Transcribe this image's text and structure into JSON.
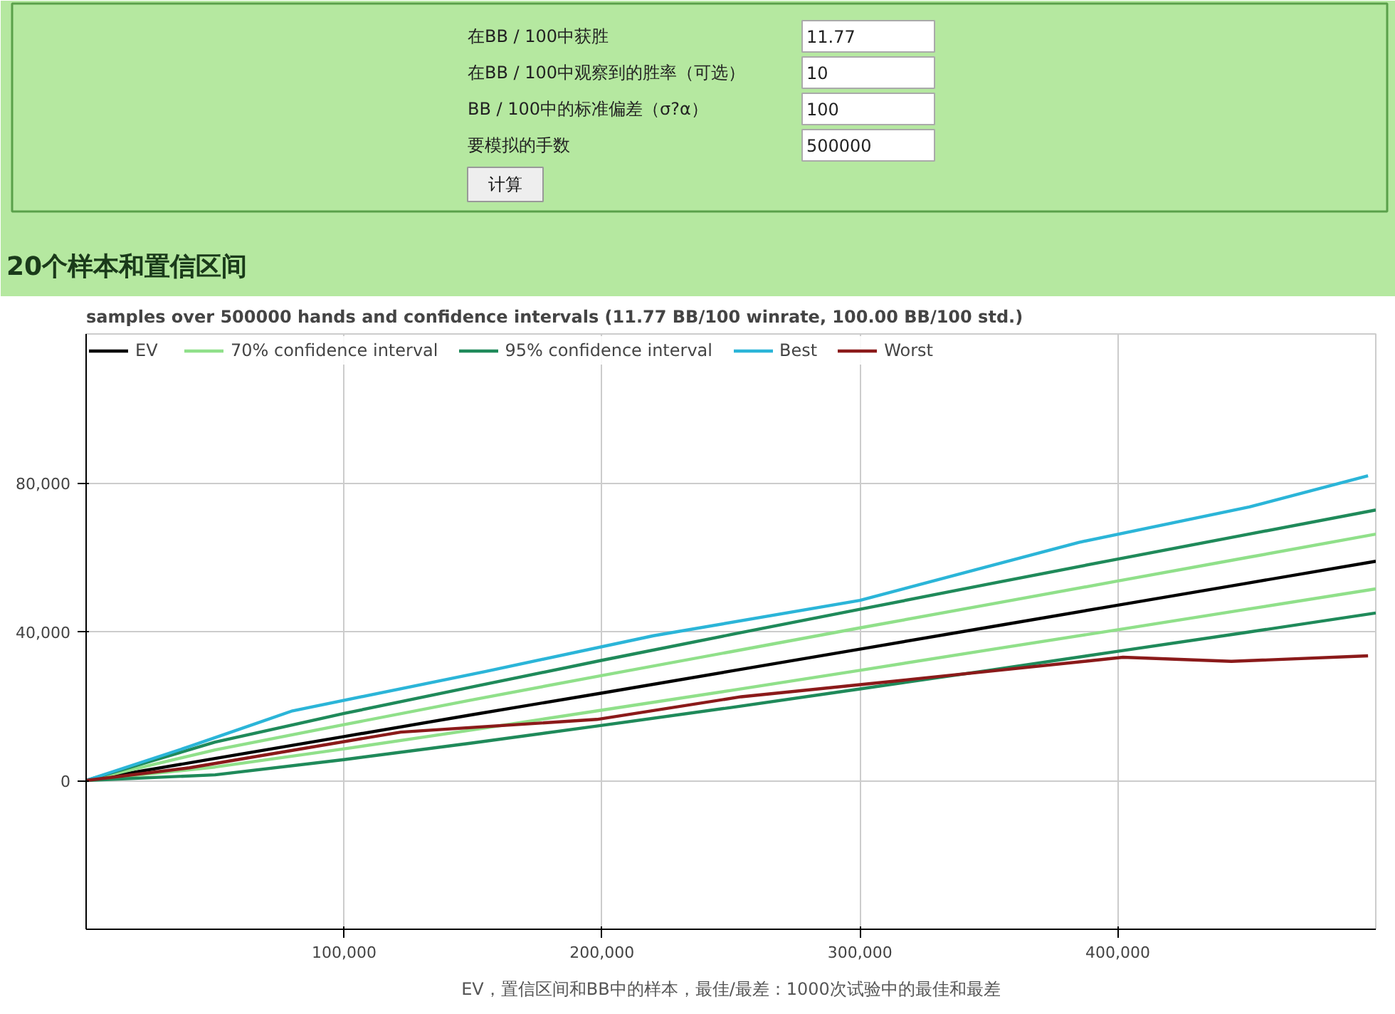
{
  "chart_data": [
    {
      "type": "other",
      "annotations": [
        "在BB / 100中获胜",
        "11.77",
        "在BB / 100中观察到的胜率（可选）",
        "10",
        "BB / 100中的标准偏差（σ?α）",
        "100",
        "要模拟的手数",
        "500000",
        "计算",
        "20个样本和置信区间"
      ]
    },
    {
      "type": "line",
      "title": "samples over 500000 hands and confidence intervals (11.77 BB/100 winrate, 100.00 BB/100 std.)",
      "x": [
        0,
        50000,
        100000,
        150000,
        200000,
        250000,
        300000,
        350000,
        400000,
        450000,
        500000
      ],
      "series": [
        {
          "name": "EV",
          "color": "#000000",
          "values": [
            0,
            5900,
            11800,
            17700,
            23500,
            29400,
            35300,
            41200,
            47100,
            53000,
            58900
          ]
        },
        {
          "name": "70% confidence interval",
          "color": "#90e08a",
          "values": [
            0,
            8200,
            15000,
            21700,
            28200,
            34600,
            41000,
            47300,
            53600,
            59900,
            66200
          ]
        },
        {
          "color": "#90e08a",
          "values": [
            0,
            3600,
            8500,
            13600,
            18900,
            24200,
            29600,
            35100,
            40500,
            46000,
            51500
          ]
        },
        {
          "name": "95% confidence interval",
          "color": "#1f8a5a",
          "values": [
            0,
            10300,
            18000,
            25200,
            32300,
            39200,
            46000,
            52800,
            59500,
            66100,
            72700
          ]
        },
        {
          "color": "#1f8a5a",
          "values": [
            0,
            1500,
            5600,
            10100,
            14800,
            19600,
            24600,
            29600,
            34700,
            39800,
            45000
          ]
        },
        {
          "name": "Best",
          "color": "#2bb5d8",
          "x": [
            0,
            40000,
            80000,
            155000,
            220000,
            300000,
            385000,
            451000,
            497000
          ],
          "values": [
            0,
            9100,
            18700,
            29300,
            38900,
            48400,
            64000,
            73500,
            81900
          ]
        },
        {
          "name": "Worst",
          "color": "#8b1a1a",
          "x": [
            0,
            40000,
            122000,
            198000,
            254000,
            319000,
            402000,
            444000,
            497000
          ],
          "values": [
            0,
            3400,
            13000,
            16400,
            22500,
            27100,
            33100,
            32000,
            33500
          ]
        }
      ],
      "xlim": [
        0,
        500000
      ],
      "xticks": [
        {
          "value": 100000,
          "label": "100,000"
        },
        {
          "value": 200000,
          "label": "200,000"
        },
        {
          "value": 300000,
          "label": "300,000"
        },
        {
          "value": 400000,
          "label": "400,000"
        }
      ],
      "ylim": [
        -40000,
        120000
      ],
      "yticks": [
        0,
        {
          "value": 40000,
          "label": "40,000"
        },
        {
          "value": 80000,
          "label": "80,000"
        }
      ],
      "grid": true,
      "legend": "top left",
      "line_style": "solid",
      "annotations": [
        "EV，置信区间和BB中的样本，最佳/最差：1000次试验中的最佳和最差"
      ]
    }
  ]
}
